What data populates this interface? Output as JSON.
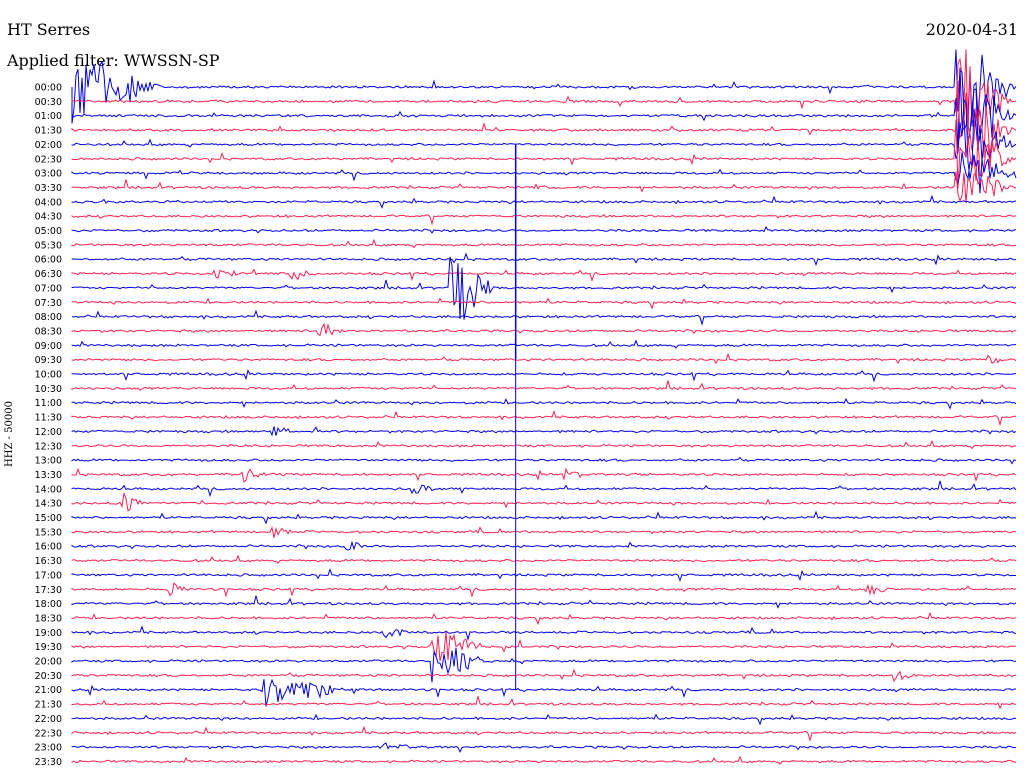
{
  "header": {
    "station": "HT Serres",
    "date": "2020-04-31",
    "filter": "Applied filter: WWSSN-SP"
  },
  "chart_data": {
    "type": "line",
    "title": "HT Serres",
    "subtitle": "Applied filter: WWSSN-SP",
    "ylabel": "HHZ - 50000",
    "xlabel": "",
    "colors": [
      "#0000e6",
      "#ff2050"
    ],
    "row_labels": [
      "00:00",
      "00:30",
      "01:00",
      "01:30",
      "02:00",
      "02:30",
      "03:00",
      "03:30",
      "04:00",
      "04:30",
      "05:00",
      "05:30",
      "06:00",
      "06:30",
      "07:00",
      "07:30",
      "08:00",
      "08:30",
      "09:00",
      "09:30",
      "10:00",
      "10:30",
      "11:00",
      "11:30",
      "12:00",
      "12:30",
      "13:00",
      "13:30",
      "14:00",
      "14:30",
      "15:00",
      "15:30",
      "16:00",
      "16:30",
      "17:00",
      "17:30",
      "18:00",
      "18:30",
      "19:00",
      "19:30",
      "20:00",
      "20:30",
      "21:00",
      "21:30",
      "22:00",
      "22:30",
      "23:00",
      "23:30"
    ],
    "events": [
      {
        "row": 0,
        "t": 0.0,
        "amp": 3.0,
        "dur": 0.1
      },
      {
        "row": 0,
        "t": 0.935,
        "amp": 6.0,
        "dur": 0.065
      },
      {
        "row": 1,
        "t": 0.935,
        "amp": 5.0,
        "dur": 0.065
      },
      {
        "row": 2,
        "t": 0.935,
        "amp": 5.0,
        "dur": 0.065
      },
      {
        "row": 3,
        "t": 0.935,
        "amp": 5.0,
        "dur": 0.065
      },
      {
        "row": 4,
        "t": 0.935,
        "amp": 4.5,
        "dur": 0.065
      },
      {
        "row": 5,
        "t": 0.935,
        "amp": 4.0,
        "dur": 0.065
      },
      {
        "row": 6,
        "t": 0.935,
        "amp": 3.0,
        "dur": 0.065
      },
      {
        "row": 7,
        "t": 0.935,
        "amp": 2.0,
        "dur": 0.065
      },
      {
        "row": 7,
        "t": 0.49,
        "amp": 0.4,
        "dur": 0.02
      },
      {
        "row": 13,
        "t": 0.15,
        "amp": 0.5,
        "dur": 0.04
      },
      {
        "row": 13,
        "t": 0.23,
        "amp": 0.6,
        "dur": 0.04
      },
      {
        "row": 14,
        "t": 0.4,
        "amp": 4.0,
        "dur": 0.05
      },
      {
        "row": 17,
        "t": 0.26,
        "amp": 0.8,
        "dur": 0.03
      },
      {
        "row": 19,
        "t": 0.97,
        "amp": 0.6,
        "dur": 0.02
      },
      {
        "row": 24,
        "t": 0.21,
        "amp": 0.7,
        "dur": 0.03
      },
      {
        "row": 27,
        "t": 0.18,
        "amp": 0.8,
        "dur": 0.03
      },
      {
        "row": 27,
        "t": 0.52,
        "amp": 0.6,
        "dur": 0.03
      },
      {
        "row": 28,
        "t": 0.36,
        "amp": 0.6,
        "dur": 0.03
      },
      {
        "row": 29,
        "t": 0.05,
        "amp": 1.0,
        "dur": 0.03
      },
      {
        "row": 31,
        "t": 0.21,
        "amp": 0.6,
        "dur": 0.03
      },
      {
        "row": 32,
        "t": 0.29,
        "amp": 0.5,
        "dur": 0.03
      },
      {
        "row": 35,
        "t": 0.1,
        "amp": 0.6,
        "dur": 0.03
      },
      {
        "row": 35,
        "t": 0.84,
        "amp": 0.7,
        "dur": 0.03
      },
      {
        "row": 38,
        "t": 0.33,
        "amp": 0.6,
        "dur": 0.03
      },
      {
        "row": 39,
        "t": 0.38,
        "amp": 2.0,
        "dur": 0.06
      },
      {
        "row": 40,
        "t": 0.38,
        "amp": 2.0,
        "dur": 0.06
      },
      {
        "row": 41,
        "t": 0.87,
        "amp": 0.6,
        "dur": 0.03
      },
      {
        "row": 42,
        "t": 0.2,
        "amp": 1.6,
        "dur": 0.1
      },
      {
        "row": 46,
        "t": 0.33,
        "amp": 0.6,
        "dur": 0.04
      }
    ],
    "vertical_spike_x": 0.47
  }
}
